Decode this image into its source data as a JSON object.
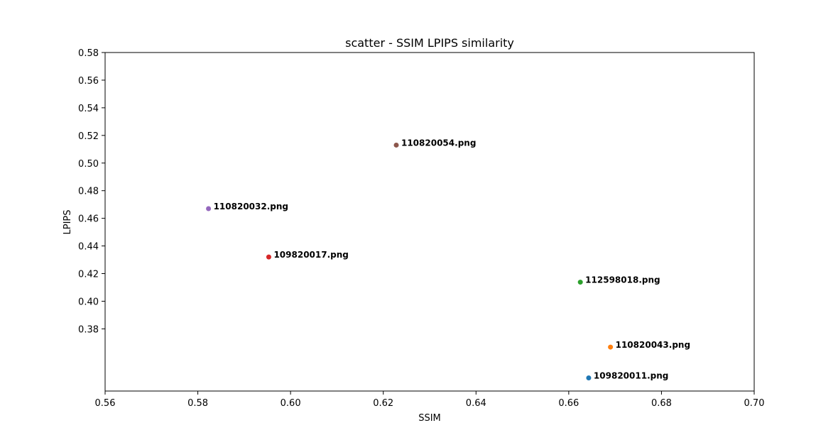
{
  "chart_data": {
    "type": "scatter",
    "title": "scatter - SSIM LPIPS similarity",
    "xlabel": "SSIM",
    "ylabel": "LPIPS",
    "xlim": [
      0.56,
      0.7
    ],
    "ylim": [
      0.335,
      0.58
    ],
    "xticks": [
      "0.56",
      "0.58",
      "0.60",
      "0.62",
      "0.64",
      "0.66",
      "0.68",
      "0.70"
    ],
    "yticks": [
      "0.38",
      "0.40",
      "0.42",
      "0.44",
      "0.46",
      "0.48",
      "0.50",
      "0.52",
      "0.54",
      "0.56",
      "0.58"
    ],
    "grid": false,
    "points": [
      {
        "label": "109820011.png",
        "x": 0.6643,
        "y": 0.3445,
        "color": "#1f77b4"
      },
      {
        "label": "110820043.png",
        "x": 0.669,
        "y": 0.3668,
        "color": "#ff7f0e"
      },
      {
        "label": "112598018.png",
        "x": 0.6625,
        "y": 0.4138,
        "color": "#2ca02c"
      },
      {
        "label": "109820017.png",
        "x": 0.5953,
        "y": 0.432,
        "color": "#d62728"
      },
      {
        "label": "110820032.png",
        "x": 0.5823,
        "y": 0.467,
        "color": "#9467bd"
      },
      {
        "label": "110820054.png",
        "x": 0.6228,
        "y": 0.513,
        "color": "#8c564b"
      }
    ]
  }
}
